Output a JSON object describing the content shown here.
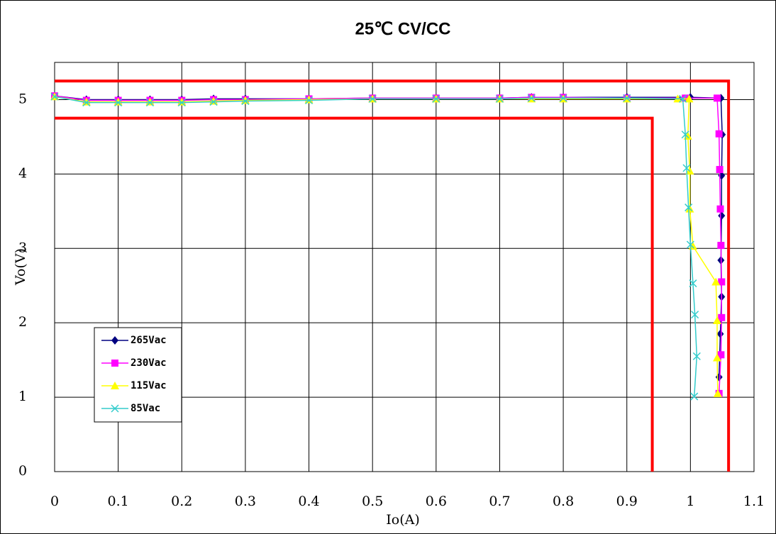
{
  "chart_data": {
    "type": "line",
    "title": "25℃ CV/CC",
    "x_label": "Io(A)",
    "y_label": "Vo(V)",
    "xlim": [
      0,
      1.1
    ],
    "ylim": [
      0,
      5.5
    ],
    "xticks": [
      0,
      0.1,
      0.2,
      0.3,
      0.4,
      0.5,
      0.6,
      0.7,
      0.8,
      0.9,
      1,
      1.1
    ],
    "yticks": [
      0,
      1,
      2,
      3,
      4,
      5
    ],
    "grid": true,
    "legend": "lower left",
    "series": [
      {
        "name": "265Vac",
        "color": "#000080",
        "marker": "diamond",
        "x": [
          0,
          0.05,
          0.1,
          0.15,
          0.2,
          0.25,
          0.3,
          0.4,
          0.5,
          0.6,
          0.7,
          0.75,
          0.8,
          0.9,
          1.0,
          1.048,
          1.05,
          1.049,
          1.049,
          1.048,
          1.049,
          1.047,
          1.045
        ],
        "values": [
          5.05,
          5.0,
          5.0,
          5.0,
          5.0,
          5.01,
          5.01,
          5.01,
          5.02,
          5.02,
          5.02,
          5.03,
          5.03,
          5.03,
          5.03,
          5.02,
          4.53,
          3.98,
          3.44,
          2.84,
          2.35,
          1.85,
          1.27
        ]
      },
      {
        "name": "230Vac",
        "color": "#ff00ff",
        "marker": "square",
        "x": [
          0,
          0.05,
          0.1,
          0.15,
          0.2,
          0.25,
          0.3,
          0.4,
          0.5,
          0.6,
          0.7,
          0.75,
          0.8,
          0.9,
          0.992,
          1.042,
          1.045,
          1.046,
          1.047,
          1.048,
          1.049,
          1.049,
          1.048,
          1.045
        ],
        "values": [
          5.05,
          4.99,
          4.99,
          4.99,
          4.99,
          5.0,
          5.0,
          5.01,
          5.02,
          5.02,
          5.02,
          5.03,
          5.03,
          5.02,
          5.02,
          5.02,
          4.54,
          4.06,
          3.53,
          3.04,
          2.55,
          2.07,
          1.57,
          1.05
        ]
      },
      {
        "name": "115Vac",
        "color": "#ffff00",
        "marker": "triangle",
        "x": [
          0,
          0.05,
          0.1,
          0.15,
          0.2,
          0.25,
          0.3,
          0.4,
          0.5,
          0.6,
          0.7,
          0.75,
          0.8,
          0.9,
          0.98,
          0.998,
          0.996,
          0.999,
          0.999,
          1.004,
          1.04,
          1.042,
          1.042,
          1.043
        ],
        "values": [
          5.04,
          4.97,
          4.97,
          4.97,
          4.97,
          4.98,
          4.99,
          5.0,
          5.01,
          5.01,
          5.01,
          5.01,
          5.01,
          5.01,
          5.01,
          5.01,
          4.51,
          4.04,
          3.53,
          3.03,
          2.55,
          2.03,
          1.53,
          1.05
        ]
      },
      {
        "name": "85Vac",
        "color": "#33cccc",
        "marker": "x",
        "x": [
          0,
          0.05,
          0.1,
          0.15,
          0.2,
          0.25,
          0.3,
          0.4,
          0.5,
          0.6,
          0.7,
          0.75,
          0.8,
          0.9,
          0.988,
          0.992,
          0.994,
          0.997,
          1.0,
          1.004,
          1.007,
          1.01,
          1.006
        ],
        "values": [
          5.04,
          4.96,
          4.96,
          4.96,
          4.96,
          4.97,
          4.98,
          4.99,
          5.01,
          5.01,
          5.01,
          5.02,
          5.02,
          5.02,
          5.01,
          4.53,
          4.08,
          3.55,
          3.05,
          2.53,
          2.11,
          1.55,
          1.01
        ]
      }
    ],
    "limits": [
      {
        "color": "#ff0000",
        "x": [
          0,
          1.06,
          1.06
        ],
        "y": [
          5.25,
          5.25,
          0
        ]
      },
      {
        "color": "#ff0000",
        "x": [
          0,
          0.94,
          0.94
        ],
        "y": [
          4.75,
          4.75,
          0
        ]
      }
    ]
  }
}
